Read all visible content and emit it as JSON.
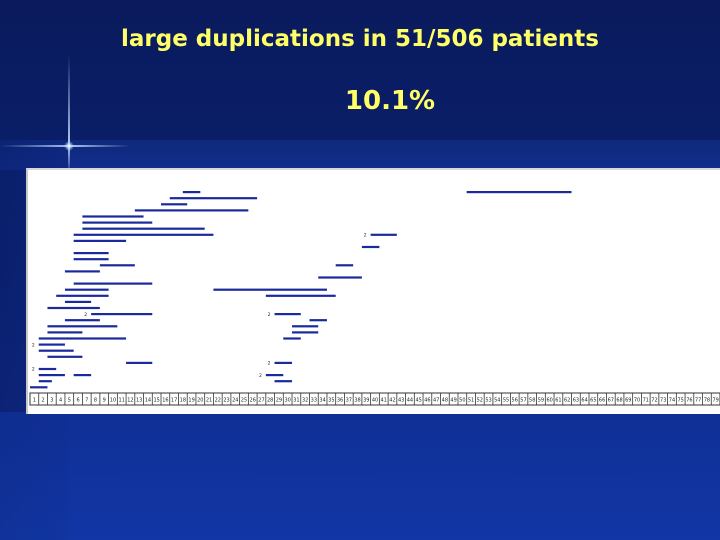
{
  "slide": {
    "title": "large duplications in 51/506 patients",
    "subtitle": "10.1%"
  },
  "colors": {
    "title_text": "#ffff66",
    "segment": "#1a2a9c",
    "panel": "#ffffff"
  },
  "chart_data": {
    "type": "bar",
    "exon_labels": [
      "1",
      "2",
      "3",
      "4",
      "5",
      "6",
      "7",
      "8",
      "9",
      "10",
      "11",
      "12",
      "13",
      "14",
      "15",
      "16",
      "17",
      "18",
      "19",
      "20",
      "21",
      "22",
      "23",
      "24",
      "25",
      "26",
      "27",
      "28",
      "29",
      "30",
      "31",
      "32",
      "33",
      "34",
      "35",
      "36",
      "37",
      "38",
      "39",
      "40",
      "41",
      "42",
      "43",
      "44",
      "45",
      "46",
      "47",
      "48",
      "49",
      "50",
      "51",
      "52",
      "53",
      "54",
      "55",
      "56",
      "57",
      "58",
      "59",
      "60",
      "61",
      "62",
      "63",
      "64",
      "65",
      "66",
      "67",
      "68",
      "69",
      "70",
      "71",
      "72",
      "73",
      "74",
      "75",
      "76",
      "77",
      "78",
      "79"
    ],
    "segments": [
      {
        "start": 18.5,
        "end": 19.5,
        "row": 1
      },
      {
        "start": 51,
        "end": 62,
        "row": 1
      },
      {
        "start": 17,
        "end": 26,
        "row": 2
      },
      {
        "start": 16,
        "end": 18,
        "row": 3
      },
      {
        "start": 13,
        "end": 25,
        "row": 4
      },
      {
        "start": 7,
        "end": 13,
        "row": 5
      },
      {
        "start": 7,
        "end": 14,
        "row": 6
      },
      {
        "start": 7,
        "end": 20,
        "row": 7
      },
      {
        "start": 6,
        "end": 21,
        "row": 8
      },
      {
        "start": 40,
        "end": 42,
        "row": 8,
        "label": "2"
      },
      {
        "start": 6,
        "end": 11,
        "row": 9
      },
      {
        "start": 39,
        "end": 40,
        "row": 10
      },
      {
        "start": 6,
        "end": 9,
        "row": 11
      },
      {
        "start": 6,
        "end": 9,
        "row": 12
      },
      {
        "start": 9,
        "end": 12,
        "row": 13
      },
      {
        "start": 36,
        "end": 37,
        "row": 13
      },
      {
        "start": 5,
        "end": 8,
        "row": 14
      },
      {
        "start": 34,
        "end": 38,
        "row": 15
      },
      {
        "start": 6,
        "end": 14,
        "row": 16
      },
      {
        "start": 5,
        "end": 9,
        "row": 17
      },
      {
        "start": 22,
        "end": 34,
        "row": 17
      },
      {
        "start": 4,
        "end": 9,
        "row": 18
      },
      {
        "start": 28,
        "end": 35,
        "row": 18
      },
      {
        "start": 5,
        "end": 7,
        "row": 19
      },
      {
        "start": 3,
        "end": 8,
        "row": 20
      },
      {
        "start": 8,
        "end": 14,
        "row": 21,
        "label": "2"
      },
      {
        "start": 29,
        "end": 31,
        "row": 21,
        "label": "2"
      },
      {
        "start": 5,
        "end": 8,
        "row": 22
      },
      {
        "start": 33,
        "end": 34,
        "row": 22
      },
      {
        "start": 3,
        "end": 10,
        "row": 23
      },
      {
        "start": 31,
        "end": 33,
        "row": 23
      },
      {
        "start": 3,
        "end": 6,
        "row": 24
      },
      {
        "start": 31,
        "end": 33,
        "row": 24
      },
      {
        "start": 2,
        "end": 11,
        "row": 25
      },
      {
        "start": 30,
        "end": 31,
        "row": 25
      },
      {
        "start": 2,
        "end": 4,
        "row": 26,
        "label": "2"
      },
      {
        "start": 2,
        "end": 5,
        "row": 27
      },
      {
        "start": 3,
        "end": 6,
        "row": 28
      },
      {
        "start": 12,
        "end": 14,
        "row": 29
      },
      {
        "start": 29,
        "end": 30,
        "row": 29,
        "label": "2"
      },
      {
        "start": 2,
        "end": 3,
        "row": 30,
        "label": "2"
      },
      {
        "start": 2,
        "end": 4,
        "row": 31
      },
      {
        "start": 6,
        "end": 7,
        "row": 31
      },
      {
        "start": 28,
        "end": 29,
        "row": 31,
        "label": "2"
      },
      {
        "start": 2,
        "end": 2.5,
        "row": 32
      },
      {
        "start": 29,
        "end": 30,
        "row": 32
      },
      {
        "start": 1,
        "end": 2,
        "row": 33
      }
    ]
  }
}
